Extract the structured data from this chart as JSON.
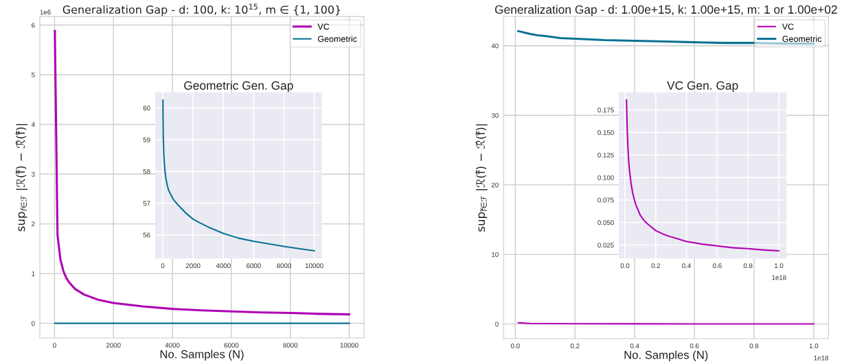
{
  "chart_data": [
    {
      "type": "line",
      "title": "Generalization Gap - d: 100, k: 10$^{15}$, m ∈ {1, 100}",
      "xlabel": "No. Samples (N)",
      "ylabel": "sup$_{f∈ℱ}$ |ℛ(f̂) − ℛ̂(f̂)|",
      "legend": "top right",
      "grid": true,
      "xlim": [
        -500,
        10500
      ],
      "xticks": [
        0,
        2000,
        4000,
        6000,
        8000,
        10000
      ],
      "ylim": [
        -0.294,
        6.17
      ],
      "yticks": [
        0,
        1,
        2,
        3,
        4,
        5,
        6
      ],
      "annotations": [
        "1e6"
      ],
      "series": [
        {
          "name": "VC",
          "color": "#b000b5",
          "x": [
            10,
            100,
            200,
            300,
            400,
            500,
            700,
            1000,
            1500,
            2000,
            3000,
            4000,
            5000,
            6000,
            7000,
            8000,
            9000,
            10000
          ],
          "values": [
            5.88,
            1.78,
            1.28,
            1.05,
            0.91,
            0.82,
            0.69,
            0.58,
            0.47,
            0.41,
            0.34,
            0.29,
            0.26,
            0.24,
            0.22,
            0.21,
            0.19,
            0.18
          ]
        },
        {
          "name": "Geometric",
          "color": "#0a7295",
          "x": [
            10,
            10000
          ],
          "values": [
            6e-05,
            5.6e-05
          ]
        }
      ]
    },
    {
      "type": "line",
      "title": "Geometric Gen. Gap",
      "grid": true,
      "xlim": [
        -500,
        10500
      ],
      "xticks": [
        0,
        2000,
        4000,
        6000,
        8000,
        10000
      ],
      "ylim": [
        55.26,
        60.49
      ],
      "yticks": [
        56,
        57,
        58,
        59,
        60
      ],
      "series": [
        {
          "color": "#0a7295",
          "x": [
            10,
            20,
            30,
            45,
            60,
            80,
            100,
            150,
            200,
            300,
            400,
            500,
            700,
            1000,
            1500,
            2000,
            2500,
            3000,
            4000,
            5000,
            6000,
            7000,
            8000,
            9000,
            10000
          ],
          "values": [
            60.25,
            59.6,
            59.2,
            58.9,
            58.7,
            58.45,
            58.3,
            58.0,
            57.8,
            57.55,
            57.4,
            57.3,
            57.12,
            56.95,
            56.7,
            56.5,
            56.37,
            56.25,
            56.05,
            55.9,
            55.8,
            55.72,
            55.64,
            55.57,
            55.5
          ]
        }
      ]
    },
    {
      "type": "line",
      "title": "Generalization Gap - d: 1.00e+15, k: 1.00e+15, m: 1 or 1.00e+02",
      "xlabel": "No. Samples (N)",
      "ylabel": "sup$_{f̂∈ℱ}$ |ℛ(f̂) − ℛ̂(f̂)|",
      "legend": "top right",
      "grid": true,
      "xlim": [
        -0.0395,
        1.0495
      ],
      "xticks": [
        {
          "value": 0,
          "label": "0.0"
        },
        {
          "value": 0.2,
          "label": "0.2"
        },
        {
          "value": 0.4,
          "label": "0.4"
        },
        {
          "value": 0.6,
          "label": "0.6"
        },
        {
          "value": 0.8,
          "label": "0.8"
        },
        {
          "value": 1,
          "label": "1.0"
        }
      ],
      "ylim": [
        -2.1,
        44.2
      ],
      "yticks": [
        0,
        10,
        20,
        30,
        40
      ],
      "annotations": [
        "1e18"
      ],
      "series": [
        {
          "name": "VC",
          "color": "#b000b5",
          "x": [
            0.01,
            0.05,
            0.1,
            0.2,
            0.4,
            0.6,
            0.8,
            1.0
          ],
          "values": [
            0.19,
            0.08,
            0.06,
            0.04,
            0.03,
            0.02,
            0.02,
            0.02
          ]
        },
        {
          "name": "Geometric",
          "color": "#0a7295",
          "x": [
            0.01,
            0.02,
            0.03,
            0.05,
            0.075,
            0.1,
            0.15,
            0.2,
            0.3,
            0.4,
            0.5,
            0.6,
            0.7,
            0.8,
            0.9,
            1.0
          ],
          "values": [
            42.1,
            42.0,
            41.9,
            41.7,
            41.5,
            41.4,
            41.1,
            41.0,
            40.8,
            40.7,
            40.6,
            40.5,
            40.4,
            40.4,
            40.3,
            40.3
          ]
        }
      ]
    },
    {
      "type": "line",
      "title": "VC Gen. Gap",
      "grid": true,
      "xlim": [
        -0.0395,
        1.0495
      ],
      "xticks": [
        {
          "value": 0,
          "label": "0.0"
        },
        {
          "value": 0.2,
          "label": "0.2"
        },
        {
          "value": 0.4,
          "label": "0.4"
        },
        {
          "value": 0.6,
          "label": "0.6"
        },
        {
          "value": 0.8,
          "label": "0.8"
        },
        {
          "value": 1,
          "label": "1.0"
        }
      ],
      "ylim": [
        0.0101,
        0.1944
      ],
      "yticks": [
        0.025,
        {
          "value": 0.05,
          "label": "0.050"
        },
        0.075,
        {
          "value": 0.1,
          "label": "0.100"
        },
        0.125,
        {
          "value": 0.15,
          "label": "0.150"
        },
        0.175
      ],
      "annotations": [
        "1e18"
      ],
      "series": [
        {
          "color": "#b000b5",
          "x": [
            0.01,
            0.015,
            0.02,
            0.025,
            0.03,
            0.04,
            0.05,
            0.06,
            0.07,
            0.085,
            0.1,
            0.125,
            0.15,
            0.2,
            0.25,
            0.3,
            0.4,
            0.5,
            0.6,
            0.7,
            0.8,
            0.9,
            1.0
          ],
          "values": [
            0.186,
            0.152,
            0.131,
            0.117,
            0.107,
            0.093,
            0.083,
            0.076,
            0.07,
            0.064,
            0.058,
            0.052,
            0.048,
            0.041,
            0.037,
            0.034,
            0.029,
            0.026,
            0.024,
            0.022,
            0.021,
            0.0195,
            0.0185
          ]
        }
      ]
    }
  ]
}
